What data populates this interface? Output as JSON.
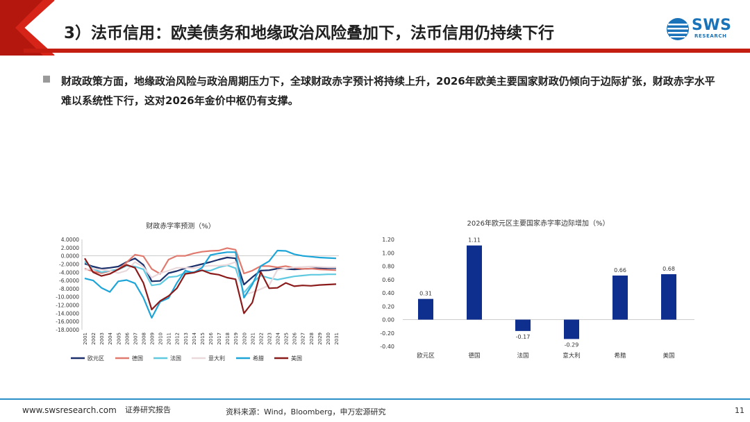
{
  "header": {
    "title": "3）法币信用：欧美债务和地缘政治风险叠加下，法币信用仍持续下行",
    "logo_text": "SWS",
    "logo_sub": "RESEARCH"
  },
  "bullet": {
    "text": "财政政策方面，地缘政治风险与政治周期压力下，全球财政赤字预计将持续上升，2026年欧美主要国家财政仍倾向于边际扩张，财政赤字水平难以系统性下行，这对2026年金价中枢仍有支撑。"
  },
  "chart_data": [
    {
      "type": "line",
      "title": "财政赤字率预测（%）",
      "x": [
        "2001",
        "2002",
        "2003",
        "2004",
        "2005",
        "2006",
        "2007",
        "2008",
        "2009",
        "2010",
        "2011",
        "2012",
        "2013",
        "2014",
        "2015",
        "2016",
        "2017",
        "2018",
        "2019",
        "2020",
        "2021",
        "2022",
        "2023",
        "2024",
        "2025",
        "2026",
        "2027",
        "2028",
        "2029",
        "2030",
        "2031"
      ],
      "ylim": [
        -18,
        4
      ],
      "yticks": [
        "4.0000",
        "2.0000",
        "0.0000",
        "-2.0000",
        "-4.0000",
        "-6.0000",
        "-8.0000",
        "-10.0000",
        "-12.0000",
        "-14.0000",
        "-16.0000",
        "-18.0000"
      ],
      "yticks_values": [
        4,
        2,
        0,
        -2,
        -4,
        -6,
        -8,
        -10,
        -12,
        -14,
        -16,
        -18
      ],
      "series": [
        {
          "name": "欧元区",
          "color": "#1b2f6b",
          "values": [
            -1.9,
            -2.6,
            -3.1,
            -2.9,
            -2.6,
            -1.5,
            -0.6,
            -2.2,
            -6.2,
            -6.1,
            -4.2,
            -3.7,
            -3.0,
            -2.5,
            -2.0,
            -1.5,
            -0.9,
            -0.4,
            -0.6,
            -7.0,
            -5.2,
            -3.6,
            -3.5,
            -3.1,
            -3.2,
            -3.3,
            -3.2,
            -3.1,
            -3.0,
            -3.0,
            -3.0
          ]
        },
        {
          "name": "德国",
          "color": "#e07a6e",
          "values": [
            -3.1,
            -3.8,
            -4.2,
            -3.7,
            -3.3,
            -1.6,
            0.3,
            -0.1,
            -3.2,
            -4.4,
            -0.9,
            0.0,
            0.0,
            0.6,
            1.0,
            1.2,
            1.3,
            1.9,
            1.5,
            -4.3,
            -3.6,
            -2.5,
            -2.5,
            -2.8,
            -2.5,
            -2.9,
            -3.2,
            -3.1,
            -3.3,
            -3.4,
            -3.5
          ]
        },
        {
          "name": "法国",
          "color": "#5fc9e0",
          "values": [
            -1.4,
            -3.2,
            -4.0,
            -3.6,
            -3.4,
            -2.4,
            -2.6,
            -3.3,
            -7.2,
            -6.9,
            -5.2,
            -5.0,
            -4.1,
            -3.9,
            -3.6,
            -3.6,
            -2.8,
            -2.3,
            -3.0,
            -9.0,
            -6.6,
            -4.8,
            -5.4,
            -5.8,
            -5.4,
            -5.0,
            -4.8,
            -4.6,
            -4.6,
            -4.5,
            -4.5
          ]
        },
        {
          "name": "意大利",
          "color": "#e9d9dc",
          "values": [
            -3.4,
            -3.1,
            -3.4,
            -3.6,
            -4.2,
            -3.6,
            -1.5,
            -2.7,
            -5.3,
            -4.2,
            -3.6,
            -2.9,
            -2.9,
            -3.0,
            -2.6,
            -2.4,
            -2.4,
            -2.2,
            -1.5,
            -9.5,
            -8.9,
            -8.1,
            -7.2,
            -3.4,
            -3.1,
            -2.8,
            -2.7,
            -2.6,
            -2.7,
            -2.8,
            -2.8
          ]
        },
        {
          "name": "希腊",
          "color": "#1ea5d8",
          "values": [
            -5.5,
            -6.0,
            -7.8,
            -8.8,
            -6.2,
            -5.9,
            -6.7,
            -10.2,
            -15.1,
            -11.2,
            -10.3,
            -6.6,
            -3.6,
            -4.1,
            -2.9,
            0.2,
            0.6,
            0.9,
            0.9,
            -10.2,
            -7.0,
            -2.5,
            -1.3,
            1.3,
            1.2,
            0.4,
            0.0,
            -0.2,
            -0.4,
            -0.5,
            -0.6
          ]
        },
        {
          "name": "美国",
          "color": "#8b1a1a",
          "values": [
            -0.6,
            -4.0,
            -4.9,
            -4.4,
            -3.3,
            -2.2,
            -2.9,
            -6.6,
            -13.1,
            -11.0,
            -9.8,
            -7.9,
            -4.4,
            -4.1,
            -3.5,
            -4.3,
            -4.6,
            -5.3,
            -5.7,
            -14.0,
            -11.4,
            -3.9,
            -7.9,
            -7.8,
            -6.6,
            -7.4,
            -7.2,
            -7.3,
            -7.1,
            -7.0,
            -6.9
          ]
        }
      ]
    },
    {
      "type": "bar",
      "title": "2026年欧元区主要国家赤字率边际增加（%）",
      "categories": [
        "欧元区",
        "德国",
        "法国",
        "意大利",
        "希腊",
        "美国"
      ],
      "values": [
        0.31,
        1.11,
        -0.17,
        -0.29,
        0.66,
        0.68
      ],
      "value_labels": [
        "0.31",
        "1.11",
        "-0.17",
        "-0.29",
        "0.66",
        "0.68"
      ],
      "ylim": [
        -0.4,
        1.2
      ],
      "yticks": [
        "1.20",
        "1.00",
        "0.80",
        "0.60",
        "0.40",
        "0.20",
        "0.00",
        "-0.20",
        "-0.40"
      ],
      "yticks_values": [
        1.2,
        1.0,
        0.8,
        0.6,
        0.4,
        0.2,
        0.0,
        -0.2,
        -0.4
      ],
      "bar_color": "#0f2f8f"
    }
  ],
  "footer": {
    "url": "www.swsresearch.com",
    "tag": "证券研究报告",
    "source": "资料来源：Wind，Bloomberg，申万宏源研究",
    "page": "11"
  }
}
